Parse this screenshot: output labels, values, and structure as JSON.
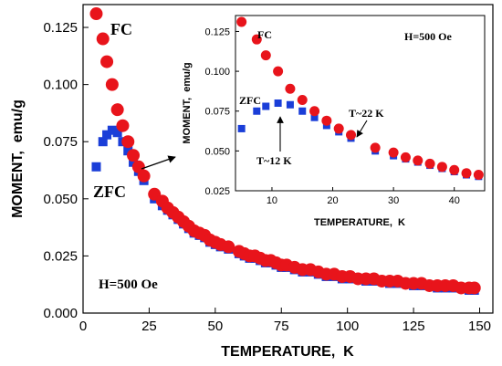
{
  "chart_data": [
    {
      "type": "scatter",
      "xlabel": "TEMPERATURE,  K",
      "ylabel": "MOMENT,  emu/g",
      "xlim": [
        0,
        155
      ],
      "ylim": [
        0,
        0.135
      ],
      "xticks": [
        0,
        25,
        50,
        75,
        100,
        125,
        150
      ],
      "yticks": [
        "0.000",
        "0.025",
        "0.050",
        "0.075",
        "0.100",
        "0.125"
      ],
      "grid": false,
      "series": [
        {
          "name": "FC",
          "marker": "circle",
          "color": "#e8141b",
          "x": [
            5,
            7.5,
            9,
            11,
            13,
            15,
            17,
            19,
            21,
            23,
            27,
            30,
            32,
            34,
            36,
            38,
            40,
            42,
            44,
            46,
            48,
            50,
            52,
            55,
            59,
            61,
            63,
            65,
            67,
            69,
            71,
            73,
            75,
            77,
            80,
            83,
            86,
            89,
            92,
            95,
            98,
            101,
            104,
            107,
            110,
            113,
            116,
            119,
            122,
            125,
            128,
            131,
            134,
            137,
            140,
            143,
            146,
            148
          ],
          "y": [
            0.131,
            0.12,
            0.11,
            0.1,
            0.089,
            0.082,
            0.075,
            0.069,
            0.064,
            0.06,
            0.052,
            0.049,
            0.046,
            0.044,
            0.042,
            0.04,
            0.038,
            0.036,
            0.035,
            0.034,
            0.032,
            0.031,
            0.03,
            0.029,
            0.027,
            0.026,
            0.025,
            0.025,
            0.024,
            0.023,
            0.023,
            0.022,
            0.021,
            0.021,
            0.02,
            0.019,
            0.019,
            0.018,
            0.017,
            0.017,
            0.016,
            0.016,
            0.015,
            0.015,
            0.015,
            0.014,
            0.014,
            0.014,
            0.013,
            0.013,
            0.013,
            0.012,
            0.012,
            0.012,
            0.012,
            0.011,
            0.011,
            0.011
          ]
        },
        {
          "name": "ZFC",
          "marker": "square",
          "color": "#1a3ed8",
          "x": [
            5,
            7.5,
            9,
            11,
            13,
            15,
            17,
            19,
            21,
            23,
            27,
            30,
            32,
            34,
            36,
            38,
            40,
            42,
            44,
            46,
            48,
            50,
            52,
            55,
            59,
            61,
            63,
            65,
            67,
            69,
            71,
            73,
            75,
            77,
            80,
            83,
            86,
            89,
            92,
            95,
            98,
            101,
            104,
            107,
            110,
            113,
            116,
            119,
            122,
            125,
            128,
            131,
            134,
            137,
            140,
            143,
            146,
            148
          ],
          "y": [
            0.064,
            0.075,
            0.078,
            0.08,
            0.079,
            0.075,
            0.071,
            0.066,
            0.062,
            0.058,
            0.05,
            0.047,
            0.045,
            0.043,
            0.041,
            0.039,
            0.037,
            0.035,
            0.034,
            0.033,
            0.031,
            0.03,
            0.029,
            0.028,
            0.026,
            0.025,
            0.024,
            0.024,
            0.023,
            0.022,
            0.022,
            0.021,
            0.02,
            0.02,
            0.019,
            0.018,
            0.018,
            0.017,
            0.016,
            0.016,
            0.015,
            0.015,
            0.015,
            0.014,
            0.014,
            0.014,
            0.013,
            0.013,
            0.013,
            0.012,
            0.012,
            0.012,
            0.011,
            0.011,
            0.011,
            0.011,
            0.01,
            0.01
          ]
        }
      ],
      "annotations": {
        "fc_label": "FC",
        "zfc_label": "ZFC",
        "field_label": "H=500 Oe"
      }
    },
    {
      "type": "scatter",
      "xlabel": "TEMPERATURE,  K",
      "ylabel": "MOMENT,  emu/g",
      "xlim": [
        4,
        45
      ],
      "ylim": [
        0.025,
        0.135
      ],
      "xticks": [
        10,
        20,
        30,
        40
      ],
      "yticks": [
        "0.025",
        "0.050",
        "0.075",
        "0.100",
        "0.125"
      ],
      "grid": false,
      "series": [
        {
          "name": "FC",
          "marker": "circle",
          "color": "#e8141b",
          "x": [
            5,
            7.5,
            9,
            11,
            13,
            15,
            17,
            19,
            21,
            23,
            27,
            30,
            32,
            34,
            36,
            38,
            40,
            42,
            44
          ],
          "y": [
            0.131,
            0.12,
            0.11,
            0.1,
            0.089,
            0.082,
            0.075,
            0.069,
            0.064,
            0.06,
            0.052,
            0.049,
            0.046,
            0.044,
            0.042,
            0.04,
            0.038,
            0.036,
            0.035
          ]
        },
        {
          "name": "ZFC",
          "marker": "square",
          "color": "#1a3ed8",
          "x": [
            5,
            7.5,
            9,
            11,
            13,
            15,
            17,
            19,
            21,
            23,
            27,
            30,
            32,
            34,
            36,
            38,
            40,
            42,
            44
          ],
          "y": [
            0.064,
            0.075,
            0.078,
            0.08,
            0.079,
            0.075,
            0.071,
            0.066,
            0.062,
            0.058,
            0.05,
            0.047,
            0.045,
            0.043,
            0.041,
            0.039,
            0.037,
            0.035,
            0.034
          ]
        }
      ],
      "annotations": {
        "fc_label": "FC",
        "zfc_label": "ZFC",
        "field_label": "H=500 Oe",
        "t12_label": "T~12 K",
        "t22_label": "T~22 K"
      }
    }
  ]
}
